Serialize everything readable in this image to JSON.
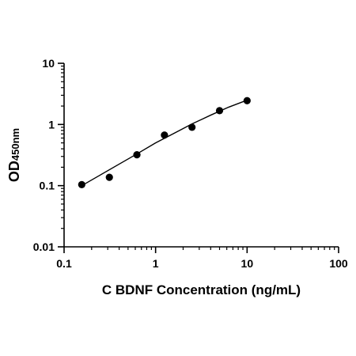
{
  "chart_data": {
    "type": "scatter",
    "title": "",
    "xlabel": "C BDNF Concentration (ng/mL)",
    "ylabel": {
      "main": "OD",
      "subscript": "450nm"
    },
    "x_scale": "log",
    "y_scale": "log",
    "xlim": [
      0.1,
      100
    ],
    "ylim": [
      0.01,
      10
    ],
    "x_ticks": [
      {
        "value": 0.1,
        "label": "0.1"
      },
      {
        "value": 1,
        "label": "1"
      },
      {
        "value": 10,
        "label": "10"
      },
      {
        "value": 100,
        "label": "100"
      }
    ],
    "y_ticks": [
      {
        "value": 0.01,
        "label": "0.01"
      },
      {
        "value": 0.1,
        "label": "0.1"
      },
      {
        "value": 1,
        "label": "1"
      },
      {
        "value": 10,
        "label": "10"
      }
    ],
    "grid": false,
    "legend": "none",
    "series": [
      {
        "points": [
          {
            "x": 0.156,
            "y": 0.104
          },
          {
            "x": 0.3125,
            "y": 0.137
          },
          {
            "x": 0.625,
            "y": 0.32
          },
          {
            "x": 1.25,
            "y": 0.67
          },
          {
            "x": 2.5,
            "y": 0.9
          },
          {
            "x": 5,
            "y": 1.68
          },
          {
            "x": 10,
            "y": 2.45
          }
        ],
        "fit_curve": {
          "x": [
            0.156,
            0.25,
            0.4,
            0.625,
            1,
            1.6,
            2.5,
            4,
            6.3,
            10
          ],
          "y": [
            0.1,
            0.15,
            0.225,
            0.33,
            0.5,
            0.72,
            1.02,
            1.42,
            1.92,
            2.5
          ]
        }
      }
    ],
    "colors": {
      "points": "#000000",
      "line": "#000000",
      "axes": "#000000"
    }
  }
}
